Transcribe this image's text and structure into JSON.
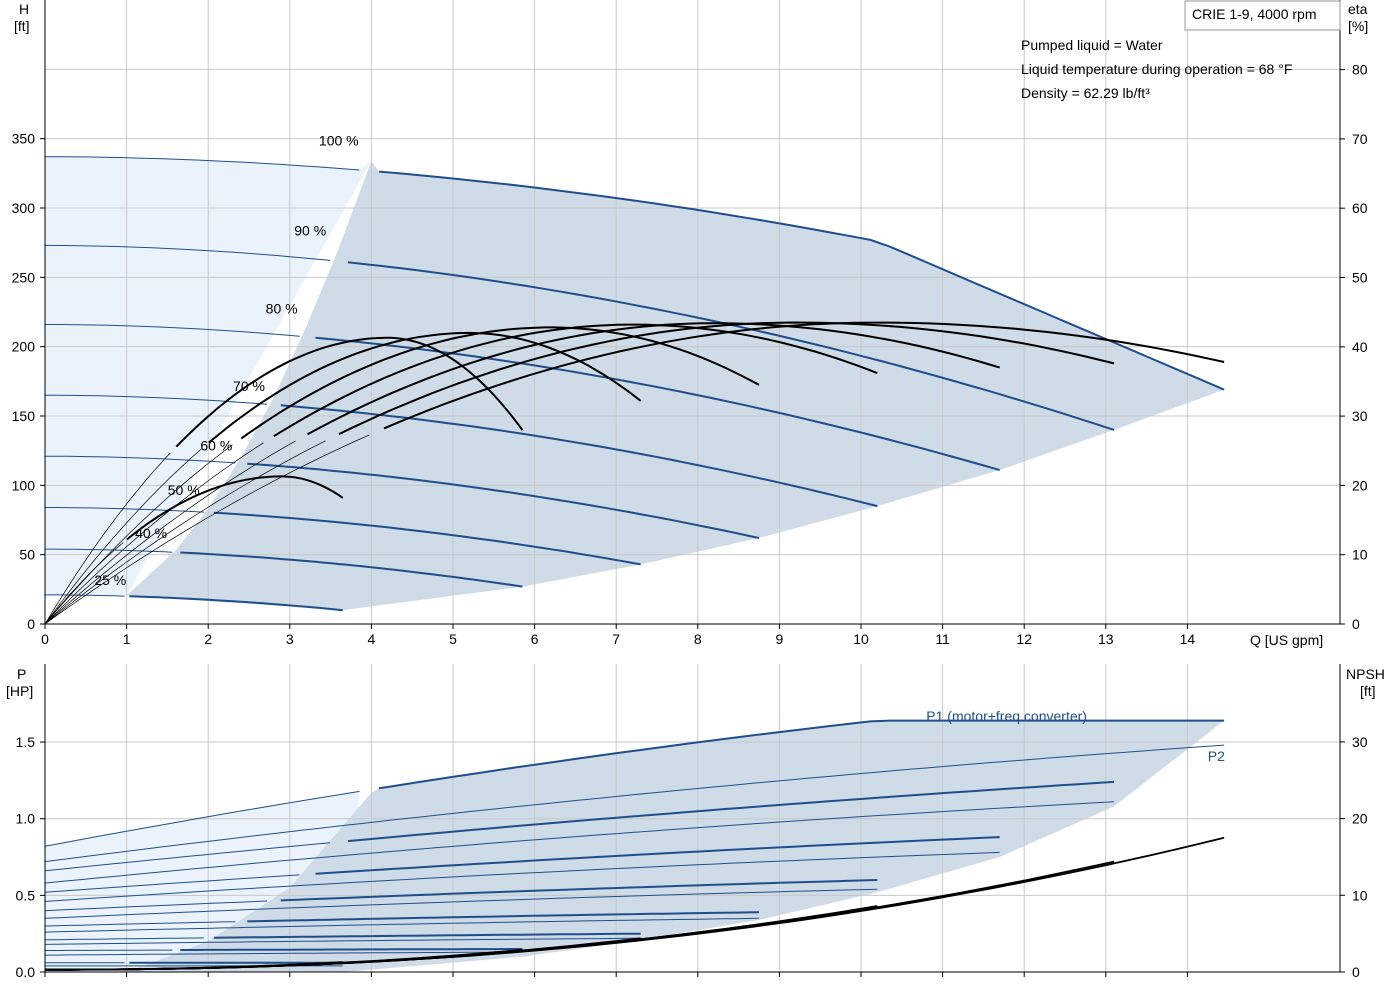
{
  "header": {
    "pump_title": "CRIE 1-9, 4000 rpm",
    "info_lines": [
      "Pumped liquid = Water",
      "Liquid temperature during operation = 68 °F",
      "Density = 62.29 lb/ft³"
    ]
  },
  "colors": {
    "curve_blue": "#1f4e8c",
    "area_fill": "#cfdbe7",
    "area_light": "#eaf3fb",
    "eta_black": "#000000"
  },
  "chart_data": [
    {
      "type": "line",
      "name": "head",
      "xlabel": "Q [US gpm]",
      "ylabel_left": [
        "H",
        "[ft]"
      ],
      "ylabel_right": [
        "eta",
        "[%]"
      ],
      "xlim": [
        0,
        15
      ],
      "ylim_left": [
        0,
        400
      ],
      "ylim_right": [
        0,
        90
      ],
      "x_ticks": [
        0,
        1,
        2,
        3,
        4,
        5,
        6,
        7,
        8,
        9,
        10,
        11,
        12,
        13,
        14
      ],
      "y_left_ticks": [
        0,
        50,
        100,
        150,
        200,
        250,
        300,
        350
      ],
      "y_right_ticks": [
        0,
        10,
        20,
        30,
        40,
        50,
        60,
        70,
        80
      ],
      "speed_labels": [
        {
          "text": "100 %",
          "q": 3.6,
          "h": 345
        },
        {
          "text": "90 %",
          "q": 3.25,
          "h": 280
        },
        {
          "text": "80 %",
          "q": 2.9,
          "h": 224
        },
        {
          "text": "70 %",
          "q": 2.5,
          "h": 168
        },
        {
          "text": "60 %",
          "q": 2.1,
          "h": 125
        },
        {
          "text": "50 %",
          "q": 1.7,
          "h": 93
        },
        {
          "text": "40 %",
          "q": 1.3,
          "h": 62
        },
        {
          "text": "25 %",
          "q": 0.8,
          "h": 28
        }
      ],
      "speeds": [
        {
          "label": "100 %",
          "h0": 337,
          "hmid": 334,
          "qmid": 4.0,
          "qmax": 14.45,
          "hmax": 169,
          "knee": [
            10.2,
            276
          ]
        },
        {
          "label": "90 %",
          "h0": 273,
          "hmid": 271,
          "qmid": 3.6,
          "qmax": 13.1,
          "hmax": 140
        },
        {
          "label": "80 %",
          "h0": 216,
          "hmid": 214,
          "qmid": 3.2,
          "qmax": 11.7,
          "hmax": 111
        },
        {
          "label": "70 %",
          "h0": 165,
          "hmid": 163,
          "qmid": 2.8,
          "qmax": 10.2,
          "hmax": 85
        },
        {
          "label": "60 %",
          "h0": 121,
          "hmid": 120,
          "qmid": 2.4,
          "qmax": 8.75,
          "hmax": 62
        },
        {
          "label": "50 %",
          "h0": 84,
          "hmid": 83,
          "qmid": 2.0,
          "qmax": 7.3,
          "hmax": 43
        },
        {
          "label": "40 %",
          "h0": 54,
          "hmid": 53,
          "qmid": 1.6,
          "qmax": 5.85,
          "hmax": 27
        },
        {
          "label": "25 %",
          "h0": 21,
          "hmid": 20.5,
          "qmid": 1.0,
          "qmax": 3.65,
          "hmax": 10
        }
      ],
      "eta_peak": 43.5,
      "eta_curves": [
        {
          "qmax": 14.45,
          "qpeak": 10.2,
          "peak": 43.5,
          "qstart": 0,
          "eend": 37.8
        },
        {
          "qmax": 13.1,
          "qpeak": 9.2,
          "peak": 43.5,
          "qstart": 0,
          "eend": 37.6
        },
        {
          "qmax": 11.7,
          "qpeak": 8.2,
          "peak": 43.4,
          "qstart": 0,
          "eend": 37.0
        },
        {
          "qmax": 10.2,
          "qpeak": 7.2,
          "peak": 43.2,
          "qstart": 0,
          "eend": 36.2
        },
        {
          "qmax": 8.75,
          "qpeak": 6.2,
          "peak": 42.8,
          "qstart": 0,
          "eend": 34.5
        },
        {
          "qmax": 7.3,
          "qpeak": 5.2,
          "peak": 42.0,
          "qstart": 0,
          "eend": 32.2
        },
        {
          "qmax": 5.85,
          "qpeak": 4.2,
          "peak": 41.3,
          "qstart": 0,
          "eend": 28.0
        },
        {
          "qmax": 3.65,
          "qpeak": 2.9,
          "peak": 21.3,
          "qstart": 0,
          "eend": 18.2
        }
      ]
    },
    {
      "type": "line",
      "name": "power",
      "ylabel_left": [
        "P",
        "[HP]"
      ],
      "ylabel_right": [
        "NPSH",
        "[ft]"
      ],
      "xlim": [
        0,
        15
      ],
      "ylim_left": [
        0,
        1.6
      ],
      "ylim_right": [
        0,
        32
      ],
      "y_left_ticks": [
        0.0,
        0.5,
        1.0,
        1.5
      ],
      "y_left_tick_labels": [
        "0.0",
        "0.5",
        "1.0",
        "1.5"
      ],
      "y_right_ticks": [
        0,
        10,
        20,
        30
      ],
      "legend": [
        {
          "text": "P1 (motor+freq.converter)",
          "q": 10.8,
          "p": 1.67
        },
        {
          "text": "P2",
          "q": 14.25,
          "p": 1.41
        }
      ],
      "p1_curves": [
        {
          "p0": 0.82,
          "pmid": 1.17,
          "qmid": 4.0,
          "pknee": 1.64,
          "qknee": 10.2,
          "qmax": 14.45,
          "pmax": 1.64
        },
        {
          "p0": 0.66,
          "pmid": 0.86,
          "qmid": 3.6,
          "qmax": 13.1,
          "pmax": 1.24
        },
        {
          "p0": 0.52,
          "pmid": 0.63,
          "qmid": 3.2,
          "qmax": 11.7,
          "pmax": 0.88
        },
        {
          "p0": 0.4,
          "pmid": 0.44,
          "qmid": 2.8,
          "qmax": 10.2,
          "pmax": 0.6
        },
        {
          "p0": 0.3,
          "pmid": 0.31,
          "qmid": 2.4,
          "qmax": 8.75,
          "pmax": 0.39
        },
        {
          "p0": 0.21,
          "pmid": 0.21,
          "qmid": 2.0,
          "qmax": 7.3,
          "pmax": 0.25
        },
        {
          "p0": 0.14,
          "pmid": 0.14,
          "qmid": 1.6,
          "qmax": 5.85,
          "pmax": 0.15
        },
        {
          "p0": 0.06,
          "pmid": 0.06,
          "qmid": 1.0,
          "qmax": 3.65,
          "pmax": 0.06
        }
      ],
      "p2_curves": [
        {
          "p0": 0.72,
          "qmid": 4.0,
          "pmid": 1.02,
          "qmax": 14.45,
          "pmax": 1.48
        },
        {
          "p0": 0.58,
          "qmid": 3.6,
          "pmid": 0.77,
          "qmax": 13.1,
          "pmax": 1.11
        },
        {
          "p0": 0.46,
          "qmid": 3.2,
          "pmid": 0.56,
          "qmax": 11.7,
          "pmax": 0.78
        },
        {
          "p0": 0.35,
          "qmid": 2.8,
          "pmid": 0.39,
          "qmax": 10.2,
          "pmax": 0.54
        },
        {
          "p0": 0.26,
          "qmid": 2.4,
          "pmid": 0.27,
          "qmax": 8.75,
          "pmax": 0.35
        },
        {
          "p0": 0.18,
          "qmid": 2.0,
          "pmid": 0.18,
          "qmax": 7.3,
          "pmax": 0.22
        },
        {
          "p0": 0.11,
          "qmid": 1.6,
          "pmid": 0.11,
          "qmax": 5.85,
          "pmax": 0.13
        },
        {
          "p0": 0.04,
          "qmid": 1.0,
          "pmid": 0.04,
          "qmax": 3.65,
          "pmax": 0.04
        }
      ],
      "npsh_curves": [
        {
          "qmax": 14.45,
          "nmax": 17.5
        },
        {
          "qmax": 13.1,
          "nmax": 14.4
        },
        {
          "qmax": 11.7,
          "nmax": 11.3
        },
        {
          "qmax": 10.2,
          "nmax": 8.6
        },
        {
          "qmax": 8.75,
          "nmax": 6.2
        },
        {
          "qmax": 7.3,
          "nmax": 4.4
        },
        {
          "qmax": 5.85,
          "nmax": 2.9
        },
        {
          "qmax": 3.65,
          "nmax": 1.3
        }
      ]
    }
  ]
}
